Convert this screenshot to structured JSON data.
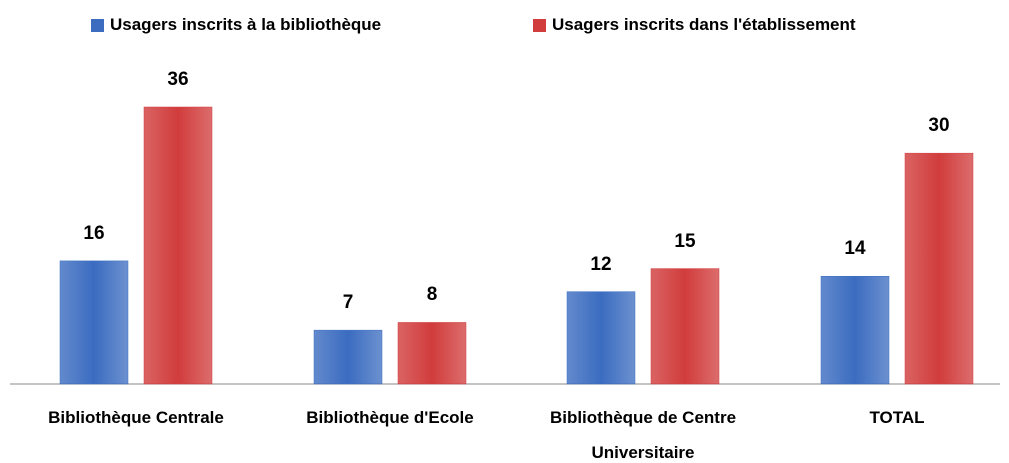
{
  "chart_data": {
    "type": "bar",
    "categories": [
      "Bibliothèque Centrale",
      "Bibliothèque d'Ecole",
      "Bibliothèque de Centre Universitaire",
      "TOTAL"
    ],
    "series": [
      {
        "name": "Usagers inscrits à la bibliothèque",
        "color": "#3b6cc0",
        "values": [
          16,
          7,
          12,
          14
        ]
      },
      {
        "name": "Usagers inscrits dans l'établissement",
        "color": "#d13c3c",
        "values": [
          36,
          8,
          15,
          30
        ]
      }
    ],
    "legend": "top"
  }
}
